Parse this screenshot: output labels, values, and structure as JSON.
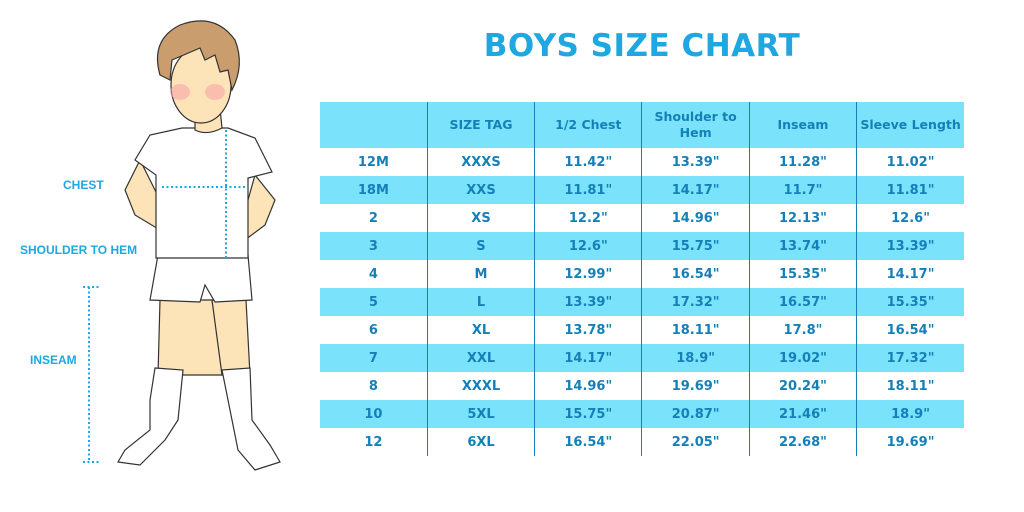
{
  "title": "BOYS SIZE CHART",
  "figure_labels": {
    "chest": "CHEST",
    "shoulder_to_hem": "SHOULDER TO HEM",
    "inseam": "INSEAM"
  },
  "colors": {
    "accent": "#1ea7e0",
    "row_highlight": "#7ae3fb",
    "text": "#1580b8"
  },
  "table": {
    "headers": [
      "",
      "SIZE TAG",
      "1/2 Chest",
      "Shoulder to Hem",
      "Inseam",
      "Sleeve Length"
    ],
    "rows": [
      [
        "12M",
        "XXXS",
        "11.42\"",
        "13.39\"",
        "11.28\"",
        "11.02\""
      ],
      [
        "18M",
        "XXS",
        "11.81\"",
        "14.17\"",
        "11.7\"",
        "11.81\""
      ],
      [
        "2",
        "XS",
        "12.2\"",
        "14.96\"",
        "12.13\"",
        "12.6\""
      ],
      [
        "3",
        "S",
        "12.6\"",
        "15.75\"",
        "13.74\"",
        "13.39\""
      ],
      [
        "4",
        "M",
        "12.99\"",
        "16.54\"",
        "15.35\"",
        "14.17\""
      ],
      [
        "5",
        "L",
        "13.39\"",
        "17.32\"",
        "16.57\"",
        "15.35\""
      ],
      [
        "6",
        "XL",
        "13.78\"",
        "18.11\"",
        "17.8\"",
        "16.54\""
      ],
      [
        "7",
        "XXL",
        "14.17\"",
        "18.9\"",
        "19.02\"",
        "17.32\""
      ],
      [
        "8",
        "XXXL",
        "14.96\"",
        "19.69\"",
        "20.24\"",
        "18.11\""
      ],
      [
        "10",
        "5XL",
        "15.75\"",
        "20.87\"",
        "21.46\"",
        "18.9\""
      ],
      [
        "12",
        "6XL",
        "16.54\"",
        "22.05\"",
        "22.68\"",
        "19.69\""
      ]
    ]
  }
}
